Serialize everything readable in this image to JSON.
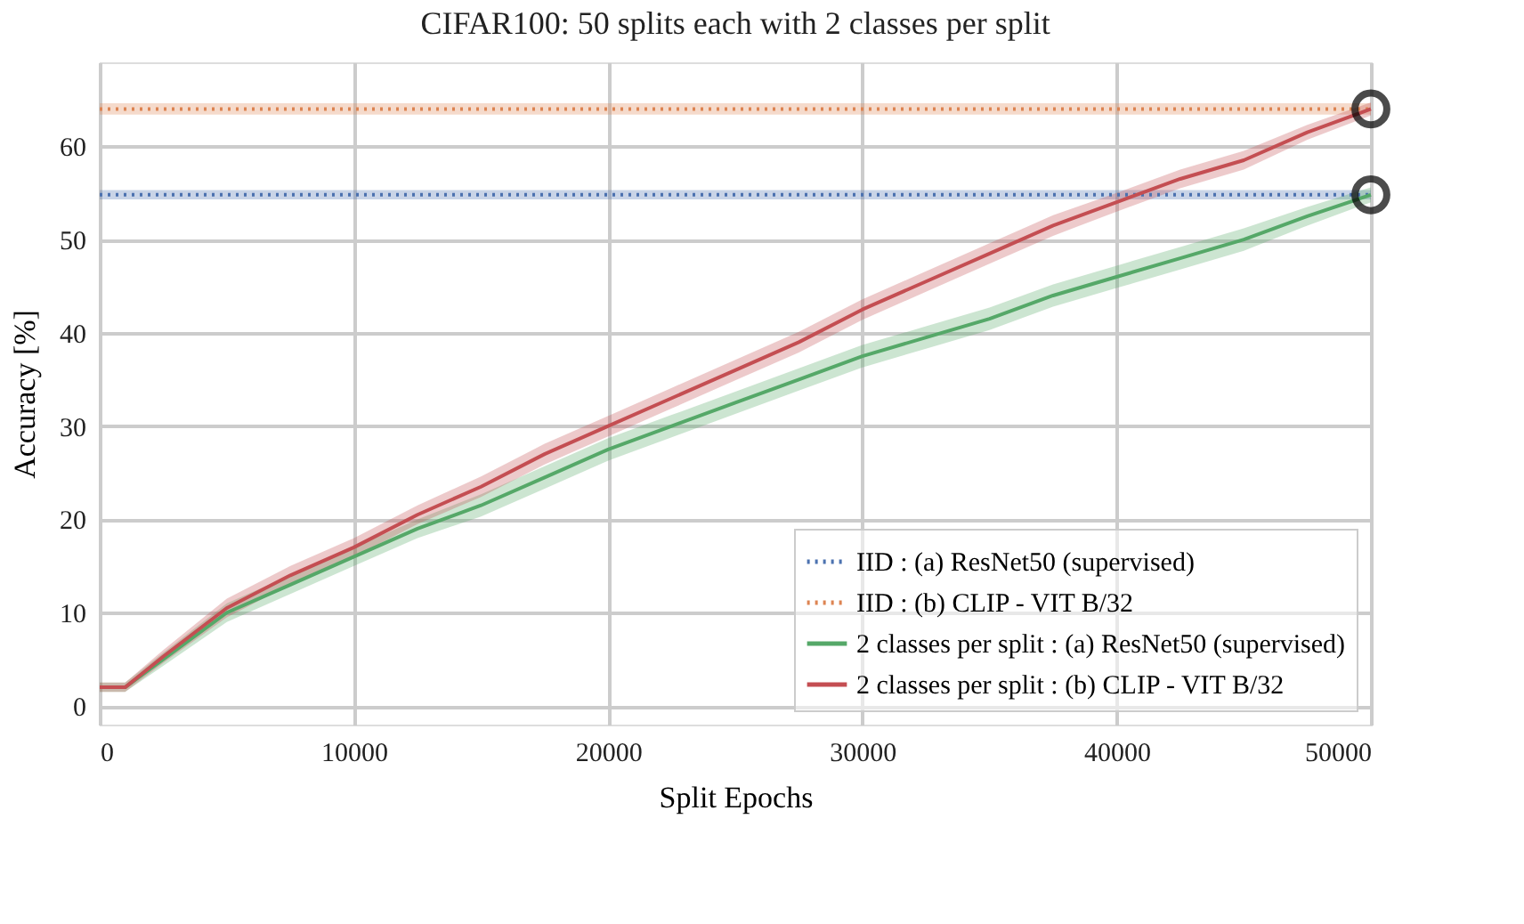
{
  "chart_data": {
    "type": "line",
    "title": "CIFAR100: 50 splits each with 2 classes per split",
    "xlabel": "Split Epochs",
    "ylabel": "Accuracy [%]",
    "xlim": [
      0,
      50000
    ],
    "xticks": [
      0,
      10000,
      20000,
      30000,
      40000,
      50000
    ],
    "ylim": [
      -2,
      69
    ],
    "yticks": [
      0,
      10,
      20,
      30,
      40,
      50,
      60
    ],
    "grid": true,
    "legend": "bottom right",
    "series": [
      {
        "name": "IID : (a) ResNet50 (supervised)",
        "color": "#4c72b0",
        "line_style": "dotted",
        "x": [
          0,
          50000
        ],
        "values": [
          54.8,
          54.8
        ],
        "lower": [
          54.3,
          54.3
        ],
        "upper": [
          55.3,
          55.3
        ]
      },
      {
        "name": "IID : (b) CLIP - VIT B/32",
        "color": "#dd8452",
        "line_style": "dotted",
        "x": [
          0,
          50000
        ],
        "values": [
          64.0,
          64.0
        ],
        "lower": [
          63.4,
          63.4
        ],
        "upper": [
          64.6,
          64.6
        ]
      },
      {
        "name": "2 classes per split : (a) ResNet50 (supervised)",
        "color": "#55a868",
        "line_style": "solid",
        "x": [
          0,
          1000,
          2500,
          5000,
          7500,
          10000,
          12500,
          15000,
          17500,
          20000,
          22500,
          25000,
          27500,
          30000,
          32500,
          35000,
          37500,
          40000,
          42500,
          45000,
          47500,
          50000
        ],
        "values": [
          2,
          2,
          5,
          10,
          13,
          16,
          19,
          21.5,
          24.5,
          27.5,
          30,
          32.5,
          35,
          37.5,
          39.5,
          41.5,
          44,
          46,
          48,
          50,
          52.5,
          54.8
        ],
        "lower": [
          1.5,
          1.5,
          4.3,
          9,
          12,
          15,
          18,
          20.3,
          23.3,
          26.3,
          28.8,
          31.3,
          33.8,
          36.3,
          38.3,
          40.3,
          42.8,
          44.8,
          46.8,
          48.8,
          51.5,
          54
        ],
        "upper": [
          2.5,
          2.5,
          5.7,
          11,
          14,
          17,
          20,
          22.7,
          25.7,
          28.7,
          31.2,
          33.7,
          36.2,
          38.7,
          40.7,
          42.7,
          45.2,
          47.2,
          49.2,
          51.2,
          53.5,
          55.6
        ]
      },
      {
        "name": "2 classes per split : (b) CLIP - VIT B/32",
        "color": "#c44e52",
        "line_style": "solid",
        "x": [
          0,
          1000,
          2500,
          5000,
          7500,
          10000,
          12500,
          15000,
          17500,
          20000,
          22500,
          25000,
          27500,
          30000,
          32500,
          35000,
          37500,
          40000,
          42500,
          45000,
          47500,
          50000
        ],
        "values": [
          2,
          2,
          5.3,
          10.5,
          14,
          17,
          20.5,
          23.5,
          27,
          30,
          33,
          36,
          39,
          42.5,
          45.5,
          48.5,
          51.5,
          54,
          56.5,
          58.5,
          61.5,
          64
        ],
        "lower": [
          1.5,
          1.5,
          4.6,
          9.5,
          13,
          16,
          19.5,
          22.4,
          25.9,
          28.9,
          31.9,
          34.9,
          37.9,
          41.4,
          44.4,
          47.4,
          50.4,
          53,
          55.5,
          57.5,
          60.7,
          63.3
        ],
        "upper": [
          2.5,
          2.5,
          6,
          11.5,
          15,
          18,
          21.5,
          24.6,
          28.1,
          31.1,
          34.1,
          37.1,
          40.1,
          43.6,
          46.6,
          49.6,
          52.6,
          55,
          57.5,
          59.5,
          62.3,
          64.7
        ]
      },
      {
        "type": "scatter",
        "color": "#000000",
        "marker": "circle",
        "x": [
          50000,
          50000
        ],
        "values": [
          54.8,
          64.0
        ]
      }
    ]
  }
}
